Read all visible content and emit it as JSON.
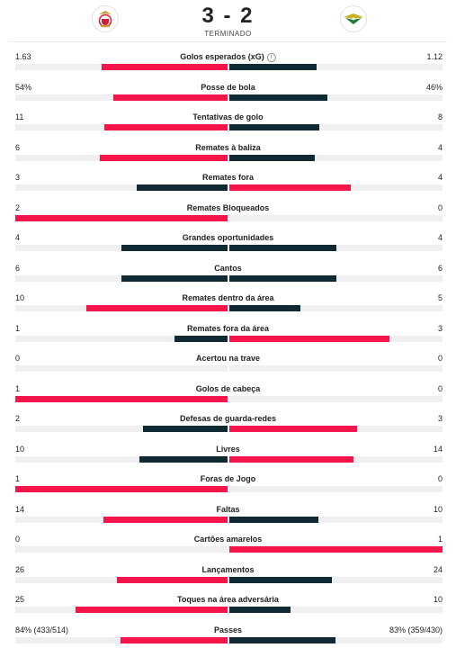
{
  "header": {
    "score": "3 - 2",
    "status": "TERMINADO",
    "home_crest_icon": "benfica-crest-icon",
    "away_crest_icon": "estoril-crest-icon"
  },
  "colors": {
    "home": "#f5154a",
    "away": "#0f2a33",
    "track": "#f0f0f2"
  },
  "stats": [
    {
      "label": "Golos esperados (xG)",
      "home": "1.63",
      "away": "1.12",
      "info": true
    },
    {
      "label": "Posse de bola",
      "home": "54%",
      "away": "46%"
    },
    {
      "label": "Tentativas de golo",
      "home": "11",
      "away": "8"
    },
    {
      "label": "Remates à baliza",
      "home": "6",
      "away": "4"
    },
    {
      "label": "Remates fora",
      "home": "3",
      "away": "4"
    },
    {
      "label": "Remates Bloqueados",
      "home": "2",
      "away": "0"
    },
    {
      "label": "Grandes oportunidades",
      "home": "4",
      "away": "4"
    },
    {
      "label": "Cantos",
      "home": "6",
      "away": "6"
    },
    {
      "label": "Remates dentro da área",
      "home": "10",
      "away": "5"
    },
    {
      "label": "Remates fora da área",
      "home": "1",
      "away": "3"
    },
    {
      "label": "Acertou na trave",
      "home": "0",
      "away": "0"
    },
    {
      "label": "Golos de cabeça",
      "home": "1",
      "away": "0"
    },
    {
      "label": "Defesas de guarda-redes",
      "home": "2",
      "away": "3"
    },
    {
      "label": "Livres",
      "home": "10",
      "away": "14"
    },
    {
      "label": "Foras de Jogo",
      "home": "1",
      "away": "0"
    },
    {
      "label": "Faltas",
      "home": "14",
      "away": "10"
    },
    {
      "label": "Cartões amarelos",
      "home": "0",
      "away": "1"
    },
    {
      "label": "Lançamentos",
      "home": "26",
      "away": "24"
    },
    {
      "label": "Toques na área adversária",
      "home": "25",
      "away": "10"
    },
    {
      "label": "Passes",
      "home": "84% (433/514)",
      "away": "83% (359/430)"
    }
  ]
}
